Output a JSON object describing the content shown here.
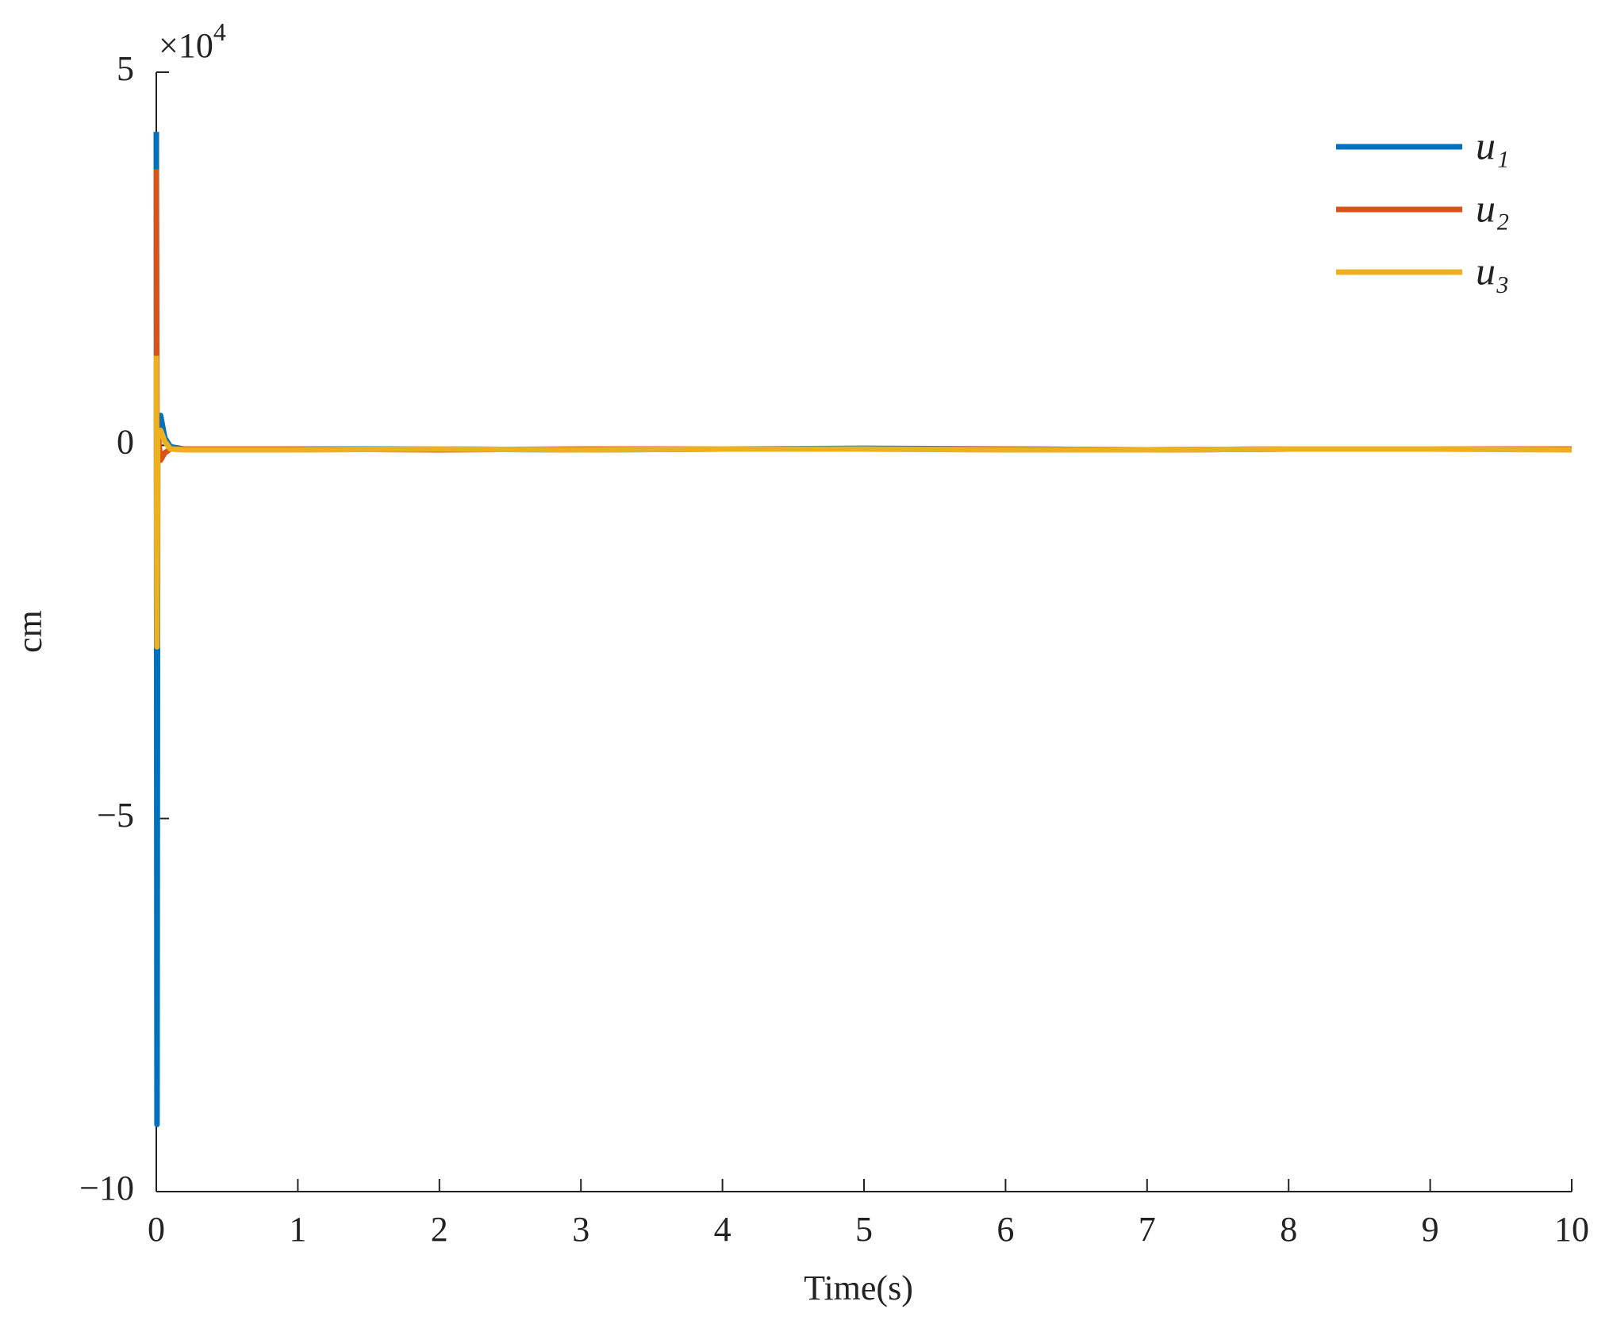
{
  "chart_data": {
    "type": "line",
    "xlabel": "Time(s)",
    "ylabel": "cm",
    "y_multiplier": "×10",
    "y_multiplier_exponent": "4",
    "x": [
      0,
      0.005,
      0.01,
      0.03,
      0.06,
      0.1,
      0.2,
      0.5,
      1,
      2,
      3,
      4,
      5,
      6,
      7,
      8,
      9,
      10
    ],
    "series": [
      {
        "name": "u₁",
        "color": "#0072BD",
        "values": [
          4.2,
          -9.1,
          0.2,
          0.4,
          0.1,
          -0.02,
          -0.05,
          -0.05,
          -0.05,
          -0.05,
          -0.06,
          -0.05,
          -0.04,
          -0.05,
          -0.06,
          -0.05,
          -0.05,
          -0.05
        ]
      },
      {
        "name": "u₂",
        "color": "#D95319",
        "values": [
          3.7,
          -0.1,
          0.2,
          -0.2,
          -0.1,
          -0.05,
          -0.05,
          -0.05,
          -0.05,
          -0.06,
          -0.05,
          -0.05,
          -0.05,
          -0.05,
          -0.06,
          -0.05,
          -0.05,
          -0.05
        ]
      },
      {
        "name": "u₃",
        "color": "#EDB120",
        "values": [
          1.2,
          -2.7,
          0.1,
          0.2,
          0.05,
          -0.05,
          -0.06,
          -0.06,
          -0.06,
          -0.05,
          -0.06,
          -0.05,
          -0.05,
          -0.06,
          -0.06,
          -0.05,
          -0.05,
          -0.06
        ]
      }
    ],
    "xlim": [
      0,
      10
    ],
    "ylim": [
      -10,
      5
    ],
    "xticks": [
      0,
      1,
      2,
      3,
      4,
      5,
      6,
      7,
      8,
      9,
      10
    ],
    "yticks": [
      {
        "value": -10,
        "label": "−10"
      },
      {
        "value": -5,
        "label": "−5"
      },
      0,
      5
    ],
    "legend": "top-right",
    "grid": false
  }
}
